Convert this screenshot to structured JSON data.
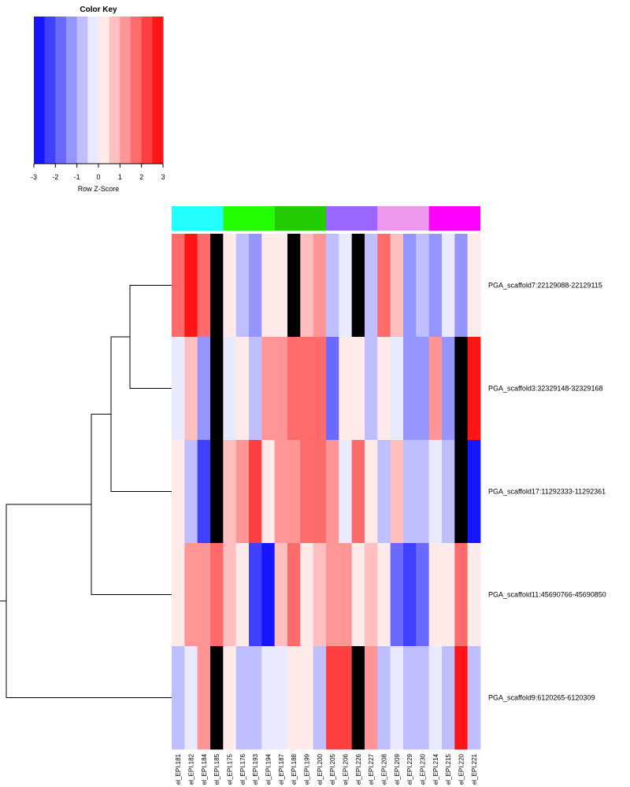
{
  "chart_data": {
    "type": "heatmap",
    "color_key": {
      "title": "Color Key",
      "xlabel": "Row Z-Score",
      "ticks": [
        "-3",
        "-2",
        "-1",
        "0",
        "1",
        "2",
        "3"
      ],
      "range": [
        -3,
        3
      ],
      "n_bins": 12,
      "low_color": "#0000ff",
      "mid_color": "#ffffff",
      "high_color": "#ff0000"
    },
    "na_color": "#000000",
    "columns": [
      "el_EPI.181",
      "el_EPI.182",
      "el_EPI.184",
      "el_EPI.185",
      "el_EPI.175",
      "el_EPI.176",
      "el_EPI.193",
      "el_EPI.194",
      "el_EPI.187",
      "el_EPI.188",
      "el_EPI.199",
      "el_EPI.200",
      "el_EPI.205",
      "el_EPI.206",
      "el_EPI.226",
      "el_EPI.227",
      "el_EPI.208",
      "el_EPI.209",
      "el_EPI.229",
      "el_EPI.230",
      "el_EPI.214",
      "el_EPI.215",
      "el_EPI.220",
      "el_EPI.221"
    ],
    "column_groups": [
      {
        "color": "#22ffff",
        "count": 4
      },
      {
        "color": "#22ff00",
        "count": 4
      },
      {
        "color": "#22cc00",
        "count": 4
      },
      {
        "color": "#9966ff",
        "count": 4
      },
      {
        "color": "#ee99ee",
        "count": 4
      },
      {
        "color": "#ff00ff",
        "count": 4
      }
    ],
    "rows": [
      "PGA_scaffold7:22129088-22129115",
      "PGA_scaffold3:32329148-32329168",
      "PGA_scaffold17:11292333-11292361",
      "PGA_scaffold11:45690766-45690850",
      "PGA_scaffold9:6120265-6120309"
    ],
    "values": [
      [
        1.5,
        2.8,
        1.5,
        null,
        0.0,
        -1.0,
        -1.5,
        0.0,
        0.0,
        null,
        0.5,
        1.0,
        -1.0,
        -0.5,
        null,
        -1.0,
        1.5,
        0.5,
        -1.5,
        -1.0,
        -1.5,
        -0.5,
        -1.5,
        0.0
      ],
      [
        -0.5,
        0.5,
        -1.5,
        null,
        -0.5,
        0.0,
        -1.0,
        1.0,
        1.0,
        1.5,
        1.5,
        1.5,
        -2.0,
        0.0,
        0.0,
        -1.0,
        0.0,
        -0.5,
        -1.5,
        -1.5,
        1.0,
        -1.5,
        null,
        2.8
      ],
      [
        0.0,
        -1.0,
        -2.5,
        null,
        0.5,
        1.0,
        2.0,
        0.0,
        1.0,
        1.0,
        1.5,
        1.5,
        1.0,
        -0.5,
        1.5,
        0.0,
        -1.0,
        0.5,
        -1.0,
        -1.0,
        -0.5,
        -1.0,
        null,
        -2.8
      ],
      [
        0.0,
        1.0,
        1.0,
        1.5,
        0.5,
        0.0,
        -2.5,
        -2.8,
        0.5,
        1.5,
        0.0,
        0.5,
        1.0,
        1.0,
        0.0,
        0.5,
        0.0,
        -2.0,
        -2.5,
        -2.0,
        0.0,
        0.0,
        1.5,
        0.0
      ],
      [
        -1.0,
        -0.5,
        1.0,
        null,
        0.0,
        -1.0,
        -1.0,
        -0.5,
        -0.5,
        0.0,
        0.0,
        -1.0,
        2.0,
        2.0,
        null,
        1.0,
        -1.0,
        -0.5,
        -1.0,
        -1.0,
        -0.5,
        -1.0,
        2.8,
        -1.0
      ]
    ],
    "dendrogram_leaf_order": [
      0,
      1,
      2,
      3,
      4
    ]
  }
}
